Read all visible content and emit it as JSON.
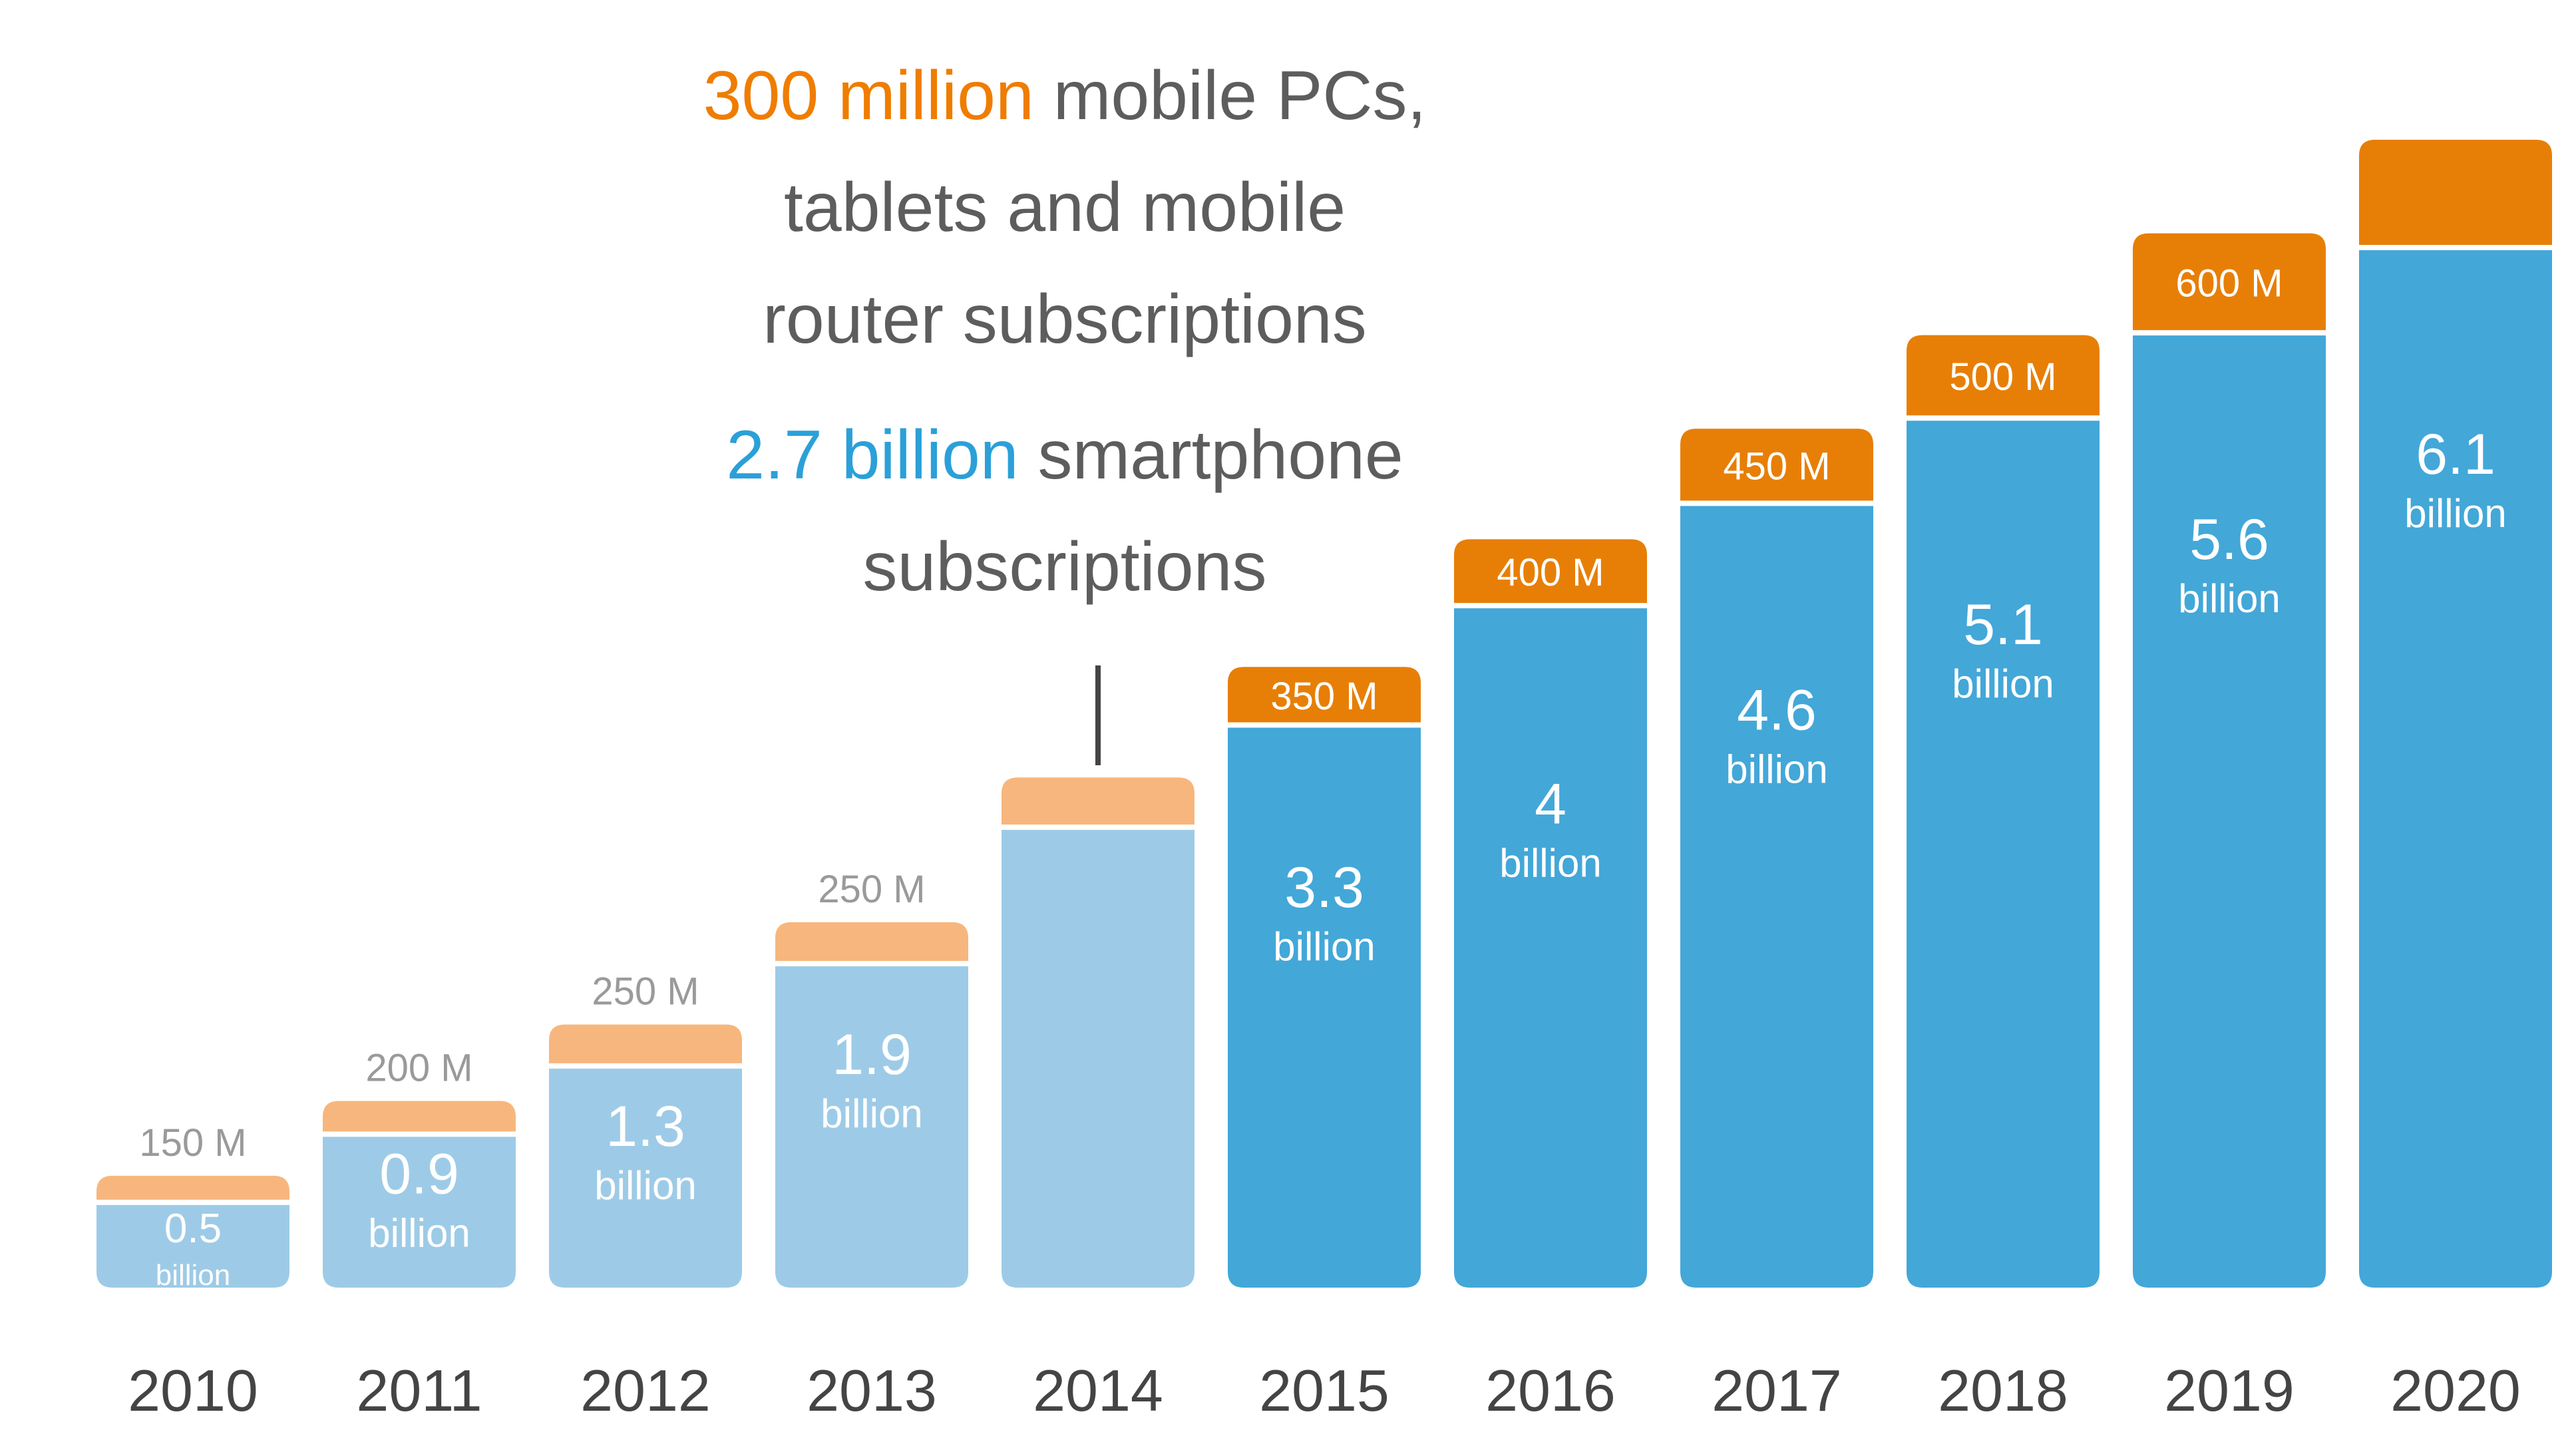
{
  "annotation": {
    "pc_highlight": "300 million",
    "pc_rest_1": " mobile PCs,",
    "pc_rest_2": "tablets and mobile",
    "pc_rest_3": "router subscriptions",
    "sp_highlight": "2.7 billion",
    "sp_rest_1": " smartphone",
    "sp_rest_2": "subscriptions"
  },
  "chart_data": {
    "type": "bar",
    "stacked": true,
    "categories": [
      "2010",
      "2011",
      "2012",
      "2013",
      "2014",
      "2015",
      "2016",
      "2017",
      "2018",
      "2019",
      "2020"
    ],
    "series": [
      {
        "key": "smartphone",
        "values": [
          0.5,
          0.9,
          1.3,
          1.9,
          2.7,
          3.3,
          4,
          4.6,
          5.1,
          5.6,
          6.1
        ],
        "labels_num": [
          "0.5",
          "0.9",
          "1.3",
          "1.9",
          "",
          "3.3",
          "4",
          "4.6",
          "5.1",
          "5.6",
          "6.1"
        ],
        "labels_unit": [
          "billion",
          "billion",
          "billion",
          "billion",
          "",
          "billion",
          "billion",
          "billion",
          "billion",
          "billion",
          "billion"
        ]
      },
      {
        "key": "pc_tablet_router",
        "values": [
          0.15,
          0.2,
          0.25,
          0.25,
          0.3,
          0.35,
          0.4,
          0.45,
          0.5,
          0.6,
          0.65
        ],
        "labels": [
          "150 M",
          "200 M",
          "250 M",
          "250 M",
          "",
          "350 M",
          "400 M",
          "450 M",
          "500 M",
          "600 M",
          ""
        ]
      }
    ],
    "forecast_from": "2015",
    "colors": {
      "smartphone_actual": "#9dcbe7",
      "smartphone_forecast": "#43a7d8",
      "pc_actual": "#f7b67d",
      "pc_forecast": "#e77f06",
      "separator": "#ffffff",
      "label_light": "#9a9a9a",
      "axis_text": "#444444",
      "pointer": "#444444"
    },
    "grid": false,
    "legend": "none"
  }
}
